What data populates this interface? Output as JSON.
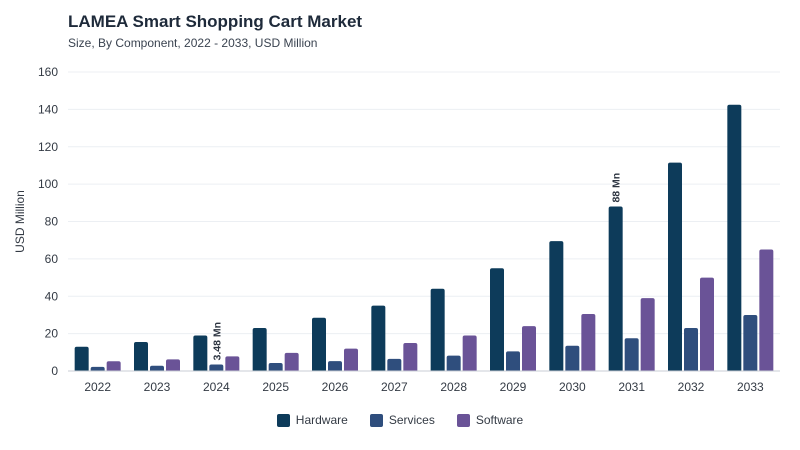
{
  "header": {
    "title": "LAMEA Smart Shopping Cart Market",
    "subtitle": "Size, By Component, 2022 - 2033, USD Million"
  },
  "colors": {
    "Hardware": "#0d3b5a",
    "Services": "#2f4e7d",
    "Software": "#6a5397"
  },
  "chart_data": {
    "type": "bar",
    "title": "LAMEA Smart Shopping Cart Market",
    "subtitle": "Size, By Component, 2022 - 2033, USD Million",
    "xlabel": "",
    "ylabel": "USD Million",
    "ylim": [
      0,
      160
    ],
    "yticks": [
      0,
      20,
      40,
      60,
      80,
      100,
      120,
      140,
      160
    ],
    "grid": true,
    "legend_position": "bottom-center",
    "categories": [
      "2022",
      "2023",
      "2024",
      "2025",
      "2026",
      "2027",
      "2028",
      "2029",
      "2030",
      "2031",
      "2032",
      "2033"
    ],
    "series": [
      {
        "name": "Hardware",
        "values": [
          13,
          15.5,
          19,
          23,
          28.5,
          35,
          44,
          55,
          69.5,
          88,
          111.5,
          142.5
        ]
      },
      {
        "name": "Services",
        "values": [
          2.2,
          2.8,
          3.48,
          4.3,
          5.3,
          6.5,
          8.2,
          10.5,
          13.5,
          17.5,
          23,
          30
        ]
      },
      {
        "name": "Software",
        "values": [
          5.2,
          6.2,
          7.8,
          9.7,
          12,
          15,
          19,
          24,
          30.5,
          39,
          50,
          65
        ]
      }
    ],
    "annotations": [
      {
        "category": "2024",
        "series": "Services",
        "text": "3.48 Mn"
      },
      {
        "category": "2031",
        "series": "Hardware",
        "text": "88 Mn"
      }
    ]
  }
}
